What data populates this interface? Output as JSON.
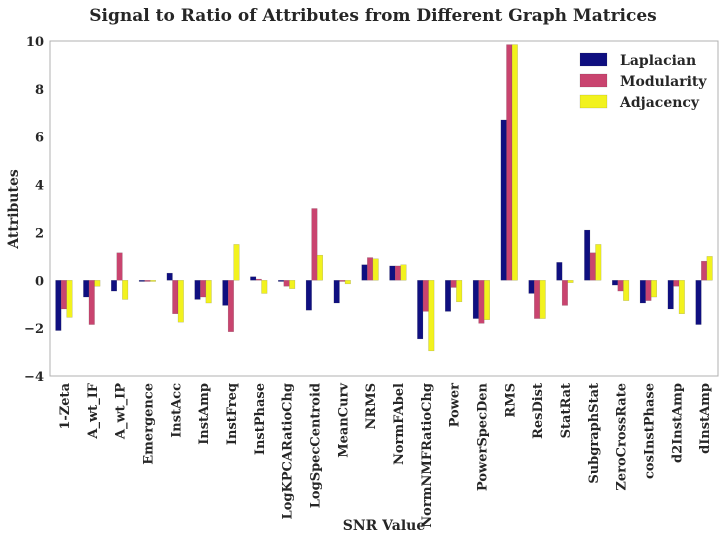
{
  "chart_data": {
    "type": "bar",
    "title": "Signal to Ratio of Attributes from Different Graph Matrices",
    "xlabel": "SNR Value",
    "ylabel": "Attributes",
    "ylim": [
      -4,
      10
    ],
    "yticks": [
      -4,
      -2,
      0,
      2,
      4,
      6,
      8,
      10
    ],
    "grid": false,
    "legend_position": "top-right",
    "categories": [
      "1-Zeta",
      "A_wt_IF",
      "A_wt_IP",
      "Emergence",
      "InstAcc",
      "InstAmp",
      "InstFreq",
      "InstPhase",
      "LogKPCARatioChg",
      "LogSpecCentroid",
      "MeanCurv",
      "NRMS",
      "NormFAbel",
      "NormNMFRatioChg",
      "Power",
      "PowerSpecDen",
      "RMS",
      "ResDist",
      "StatRat",
      "SubgraphStat",
      "ZeroCrossRate",
      "cosInstPhase",
      "d2InstAmp",
      "dInstAmp"
    ],
    "series": [
      {
        "name": "Laplacian",
        "color": "#0f0f80",
        "values": [
          -2.1,
          -0.7,
          -0.45,
          -0.05,
          0.3,
          -0.8,
          -1.05,
          0.15,
          -0.05,
          -1.25,
          -0.95,
          0.65,
          0.6,
          -2.45,
          -1.3,
          -1.6,
          6.7,
          -0.55,
          0.75,
          2.1,
          -0.2,
          -0.95,
          -1.2,
          -1.85
        ]
      },
      {
        "name": "Modularity",
        "color": "#c9446f",
        "values": [
          -1.2,
          -1.85,
          1.15,
          -0.05,
          -1.4,
          -0.7,
          -2.15,
          0.05,
          -0.25,
          3.0,
          -0.05,
          0.95,
          0.6,
          -1.3,
          -0.3,
          -1.8,
          9.85,
          -1.6,
          -1.05,
          1.15,
          -0.45,
          -0.85,
          -0.25,
          0.8
        ]
      },
      {
        "name": "Adjacency",
        "color": "#f2f21e",
        "values": [
          -1.55,
          -0.25,
          -0.8,
          -0.05,
          -1.75,
          -0.95,
          1.5,
          -0.55,
          -0.35,
          1.05,
          -0.15,
          0.9,
          0.65,
          -2.95,
          -0.9,
          -1.65,
          9.85,
          -1.6,
          -0.1,
          1.5,
          -0.85,
          -0.7,
          -1.4,
          1.0
        ]
      }
    ]
  }
}
